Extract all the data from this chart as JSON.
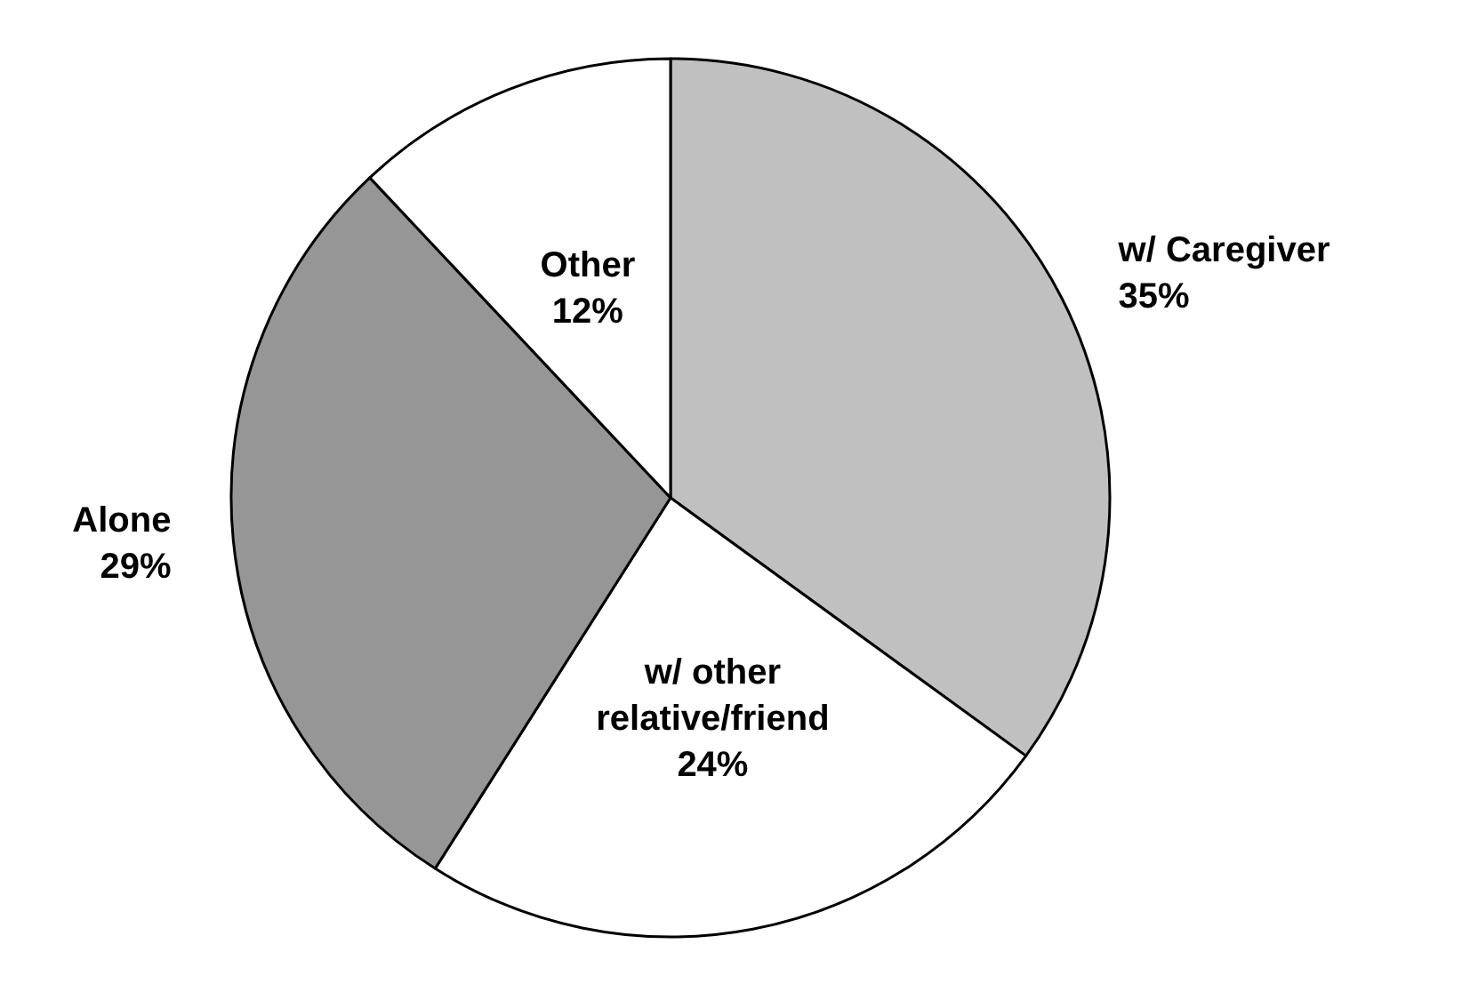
{
  "chart_data": {
    "type": "pie",
    "categories": [
      "w/ Caregiver",
      "w/ other relative/friend",
      "Alone",
      "Other"
    ],
    "values": [
      35,
      24,
      29,
      12
    ],
    "colors": [
      "#c0c0c0",
      "#ffffff",
      "#969696",
      "#ffffff"
    ],
    "value_labels": [
      "35%",
      "24%",
      "29%",
      "12%"
    ]
  }
}
